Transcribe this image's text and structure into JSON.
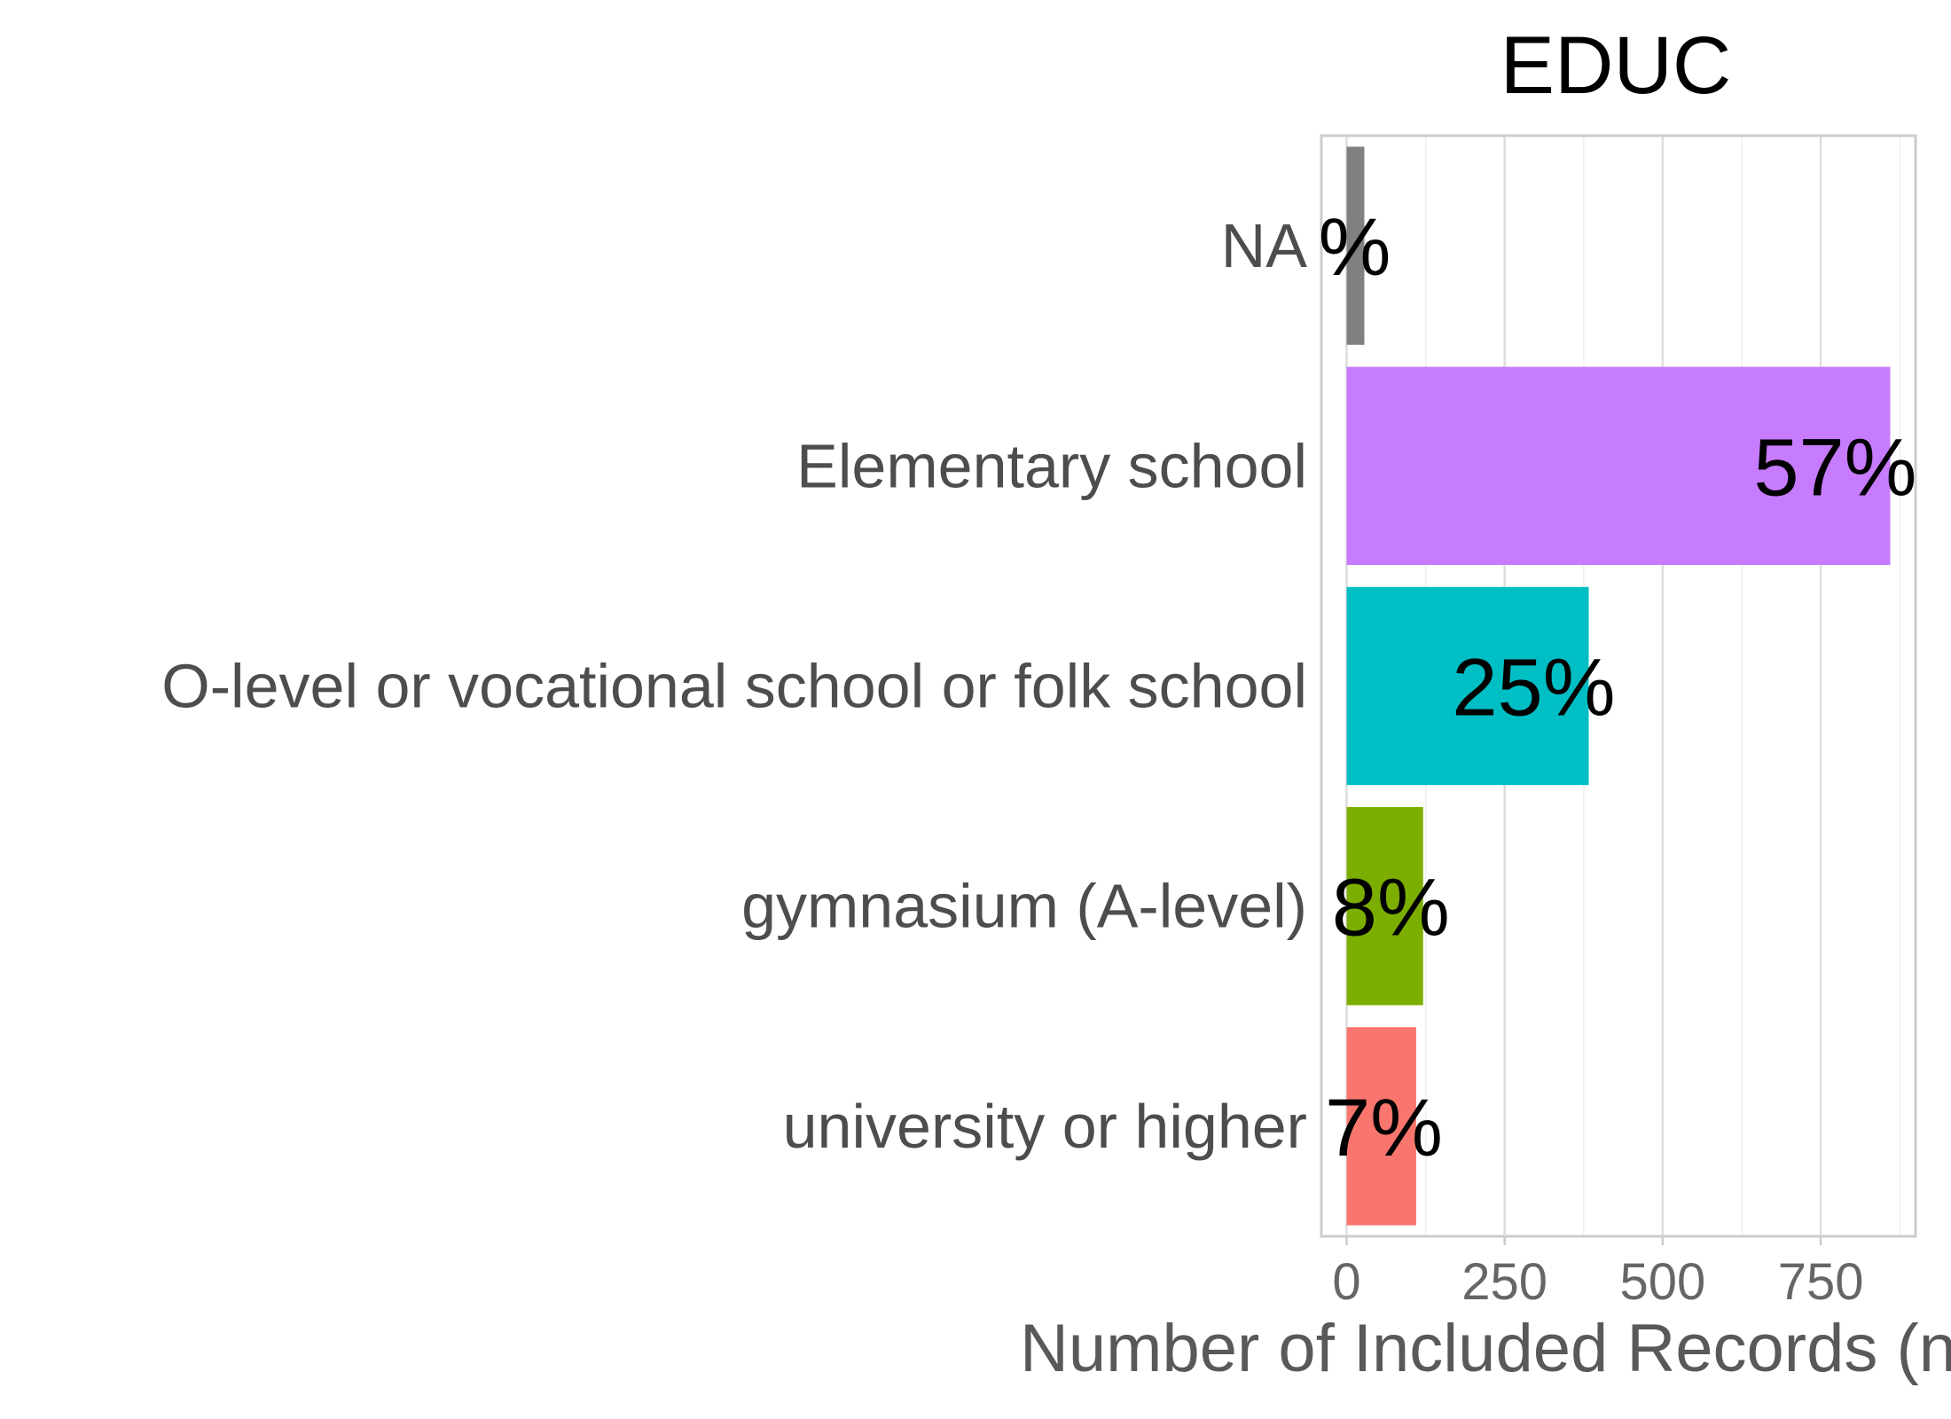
{
  "chart_data": {
    "type": "bar",
    "orientation": "horizontal",
    "title": "EDUC",
    "xlabel": "Number of Included Records (n",
    "ylabel": "",
    "categories": [
      "NA",
      "Elementary school",
      "O-level or vocational school or folk school",
      "gymnasium (A-level)",
      "university or higher"
    ],
    "values": [
      28,
      860,
      383,
      121,
      110
    ],
    "labels": [
      "%",
      "57%",
      "25%",
      "8%",
      "7%"
    ],
    "colors": [
      "#808080",
      "#C77CFF",
      "#00BFC4",
      "#7CAE00",
      "#F8766D"
    ],
    "xticks": [
      0,
      250,
      500,
      750
    ],
    "xtick_labels": [
      "0",
      "250",
      "500",
      "750"
    ],
    "xlim": [
      -40,
      900
    ],
    "grid": true,
    "legend": "none"
  }
}
